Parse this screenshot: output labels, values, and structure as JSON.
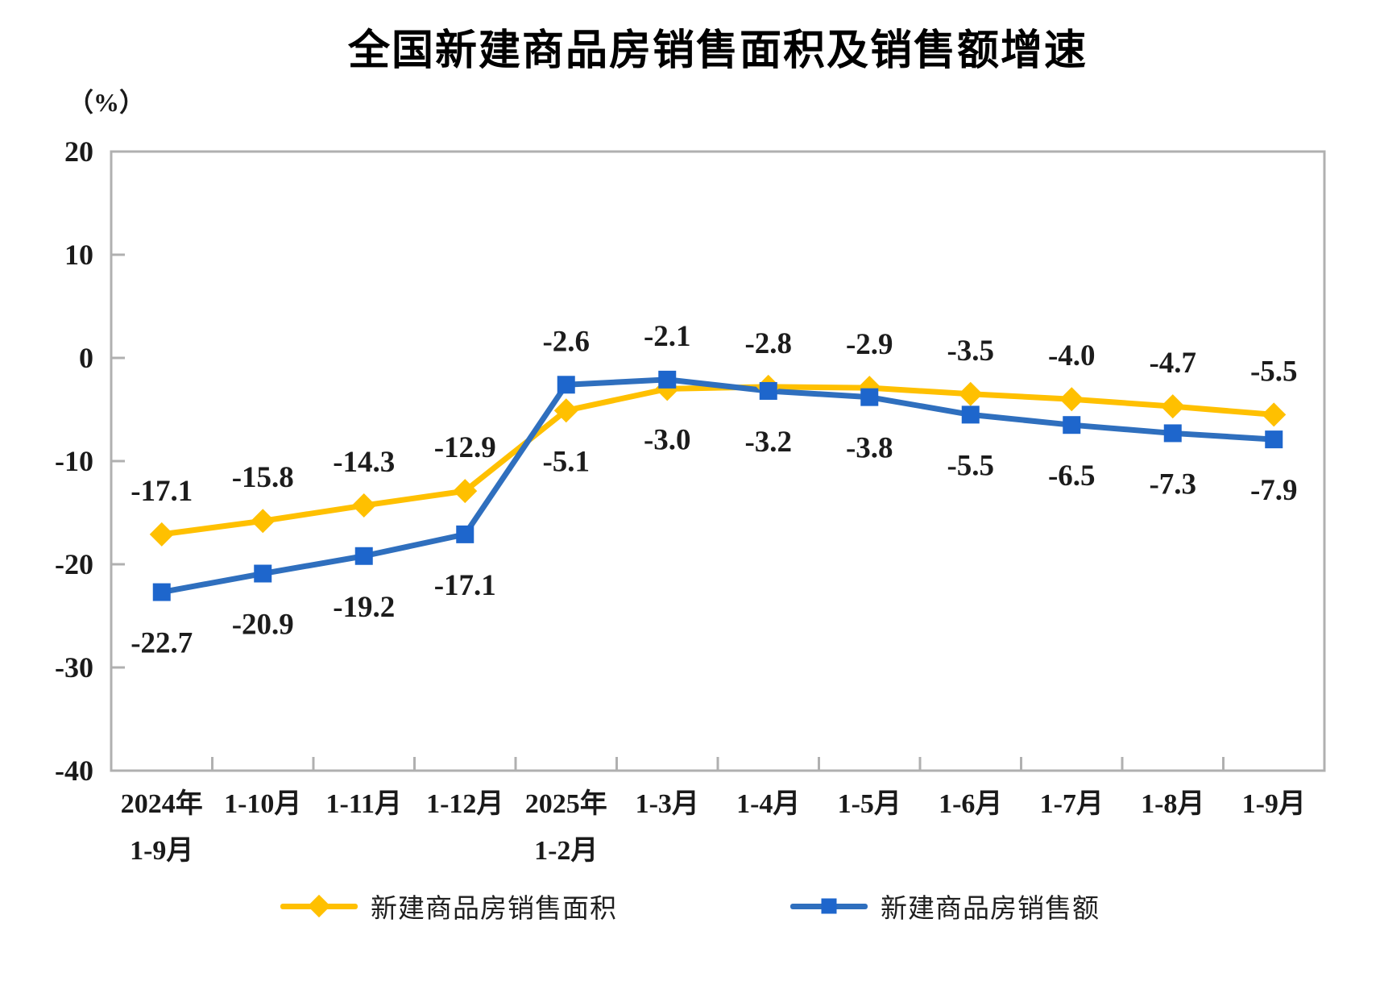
{
  "chart_data": {
    "type": "line",
    "title": "全国新建商品房销售面积及销售额增速",
    "unit_label": "（%）",
    "categories": [
      [
        "2024年",
        "1-9月"
      ],
      [
        "1-10月"
      ],
      [
        "1-11月"
      ],
      [
        "1-12月"
      ],
      [
        "2025年",
        "1-2月"
      ],
      [
        "1-3月"
      ],
      [
        "1-4月"
      ],
      [
        "1-5月"
      ],
      [
        "1-6月"
      ],
      [
        "1-7月"
      ],
      [
        "1-8月"
      ],
      [
        "1-9月"
      ]
    ],
    "ylim": [
      -40,
      20
    ],
    "ytick_step": 10,
    "yticks": [
      20,
      10,
      0,
      -10,
      -20,
      -30,
      -40
    ],
    "grid": false,
    "legend_position": "bottom",
    "axis_color": "#b0b0b0",
    "text_color": "#1a1a1a",
    "series": [
      {
        "name": "新建商品房销售面积",
        "marker": "diamond",
        "line_color": "#FFC000",
        "marker_color": "#FFC000",
        "values": [
          -17.1,
          -15.8,
          -14.3,
          -12.9,
          -5.1,
          -3.0,
          -2.8,
          -2.9,
          -3.5,
          -4.0,
          -4.7,
          -5.5
        ]
      },
      {
        "name": "新建商品房销售额",
        "marker": "square",
        "line_color": "#2F6FBE",
        "marker_color": "#1E66CC",
        "values": [
          -22.7,
          -20.9,
          -19.2,
          -17.1,
          -2.6,
          -2.1,
          -3.2,
          -3.8,
          -5.5,
          -6.5,
          -7.3,
          -7.9
        ]
      }
    ]
  }
}
